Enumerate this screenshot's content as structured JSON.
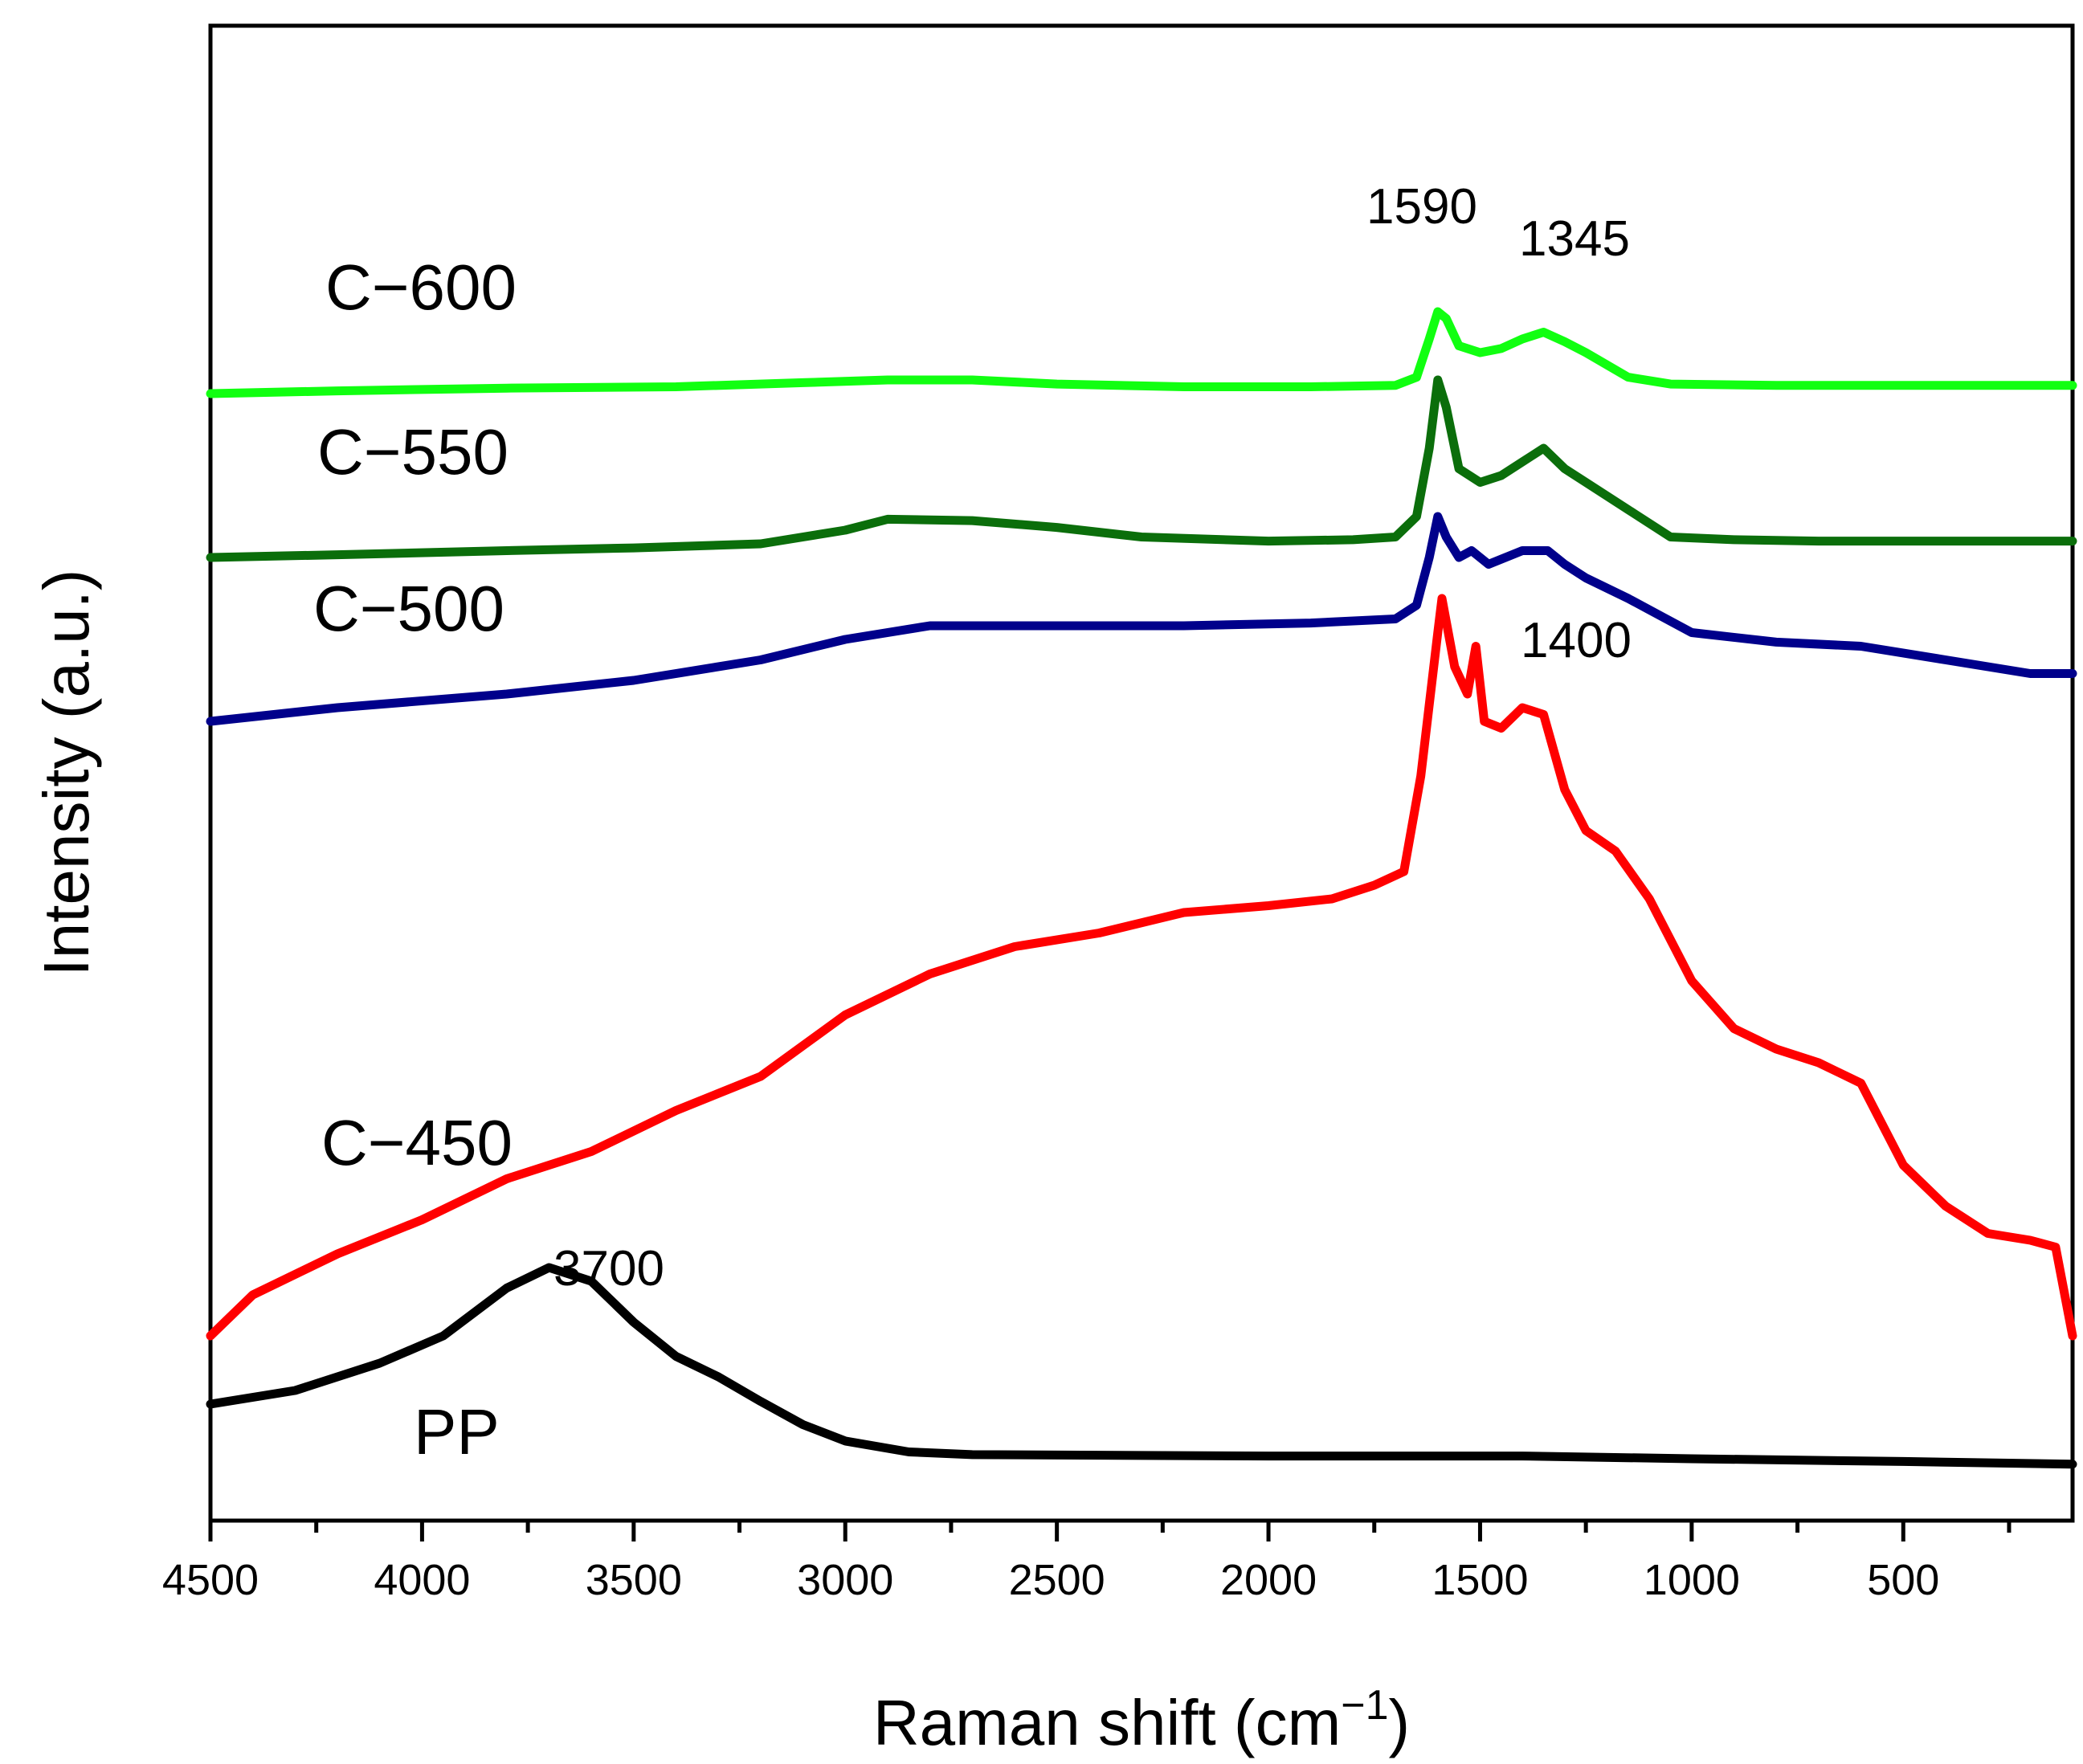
{
  "chart_data": {
    "type": "line",
    "title": "",
    "xlabel": "Raman shift (cm",
    "xlabel_sup": "−1",
    "xlabel_close": ")",
    "ylabel": "Intensity (a.u.)",
    "xlim": [
      4500,
      100
    ],
    "ylim": [
      0,
      10
    ],
    "x_ticks": [
      4500,
      4000,
      3500,
      3000,
      2500,
      2000,
      1500,
      1000,
      500
    ],
    "grid": false,
    "series": [
      {
        "name": "PP",
        "color": "#000000",
        "points": [
          [
            4500,
            0.6
          ],
          [
            4300,
            0.7
          ],
          [
            4100,
            0.9
          ],
          [
            3950,
            1.1
          ],
          [
            3800,
            1.45
          ],
          [
            3700,
            1.6
          ],
          [
            3600,
            1.5
          ],
          [
            3500,
            1.2
          ],
          [
            3400,
            0.95
          ],
          [
            3300,
            0.8
          ],
          [
            3200,
            0.62
          ],
          [
            3100,
            0.45
          ],
          [
            3000,
            0.33
          ],
          [
            2850,
            0.25
          ],
          [
            2700,
            0.23
          ],
          [
            2000,
            0.22
          ],
          [
            1400,
            0.22
          ],
          [
            1000,
            0.2
          ],
          [
            500,
            0.18
          ],
          [
            100,
            0.16
          ]
        ]
      },
      {
        "name": "C−450",
        "color": "#ff0000",
        "points": [
          [
            4500,
            1.1
          ],
          [
            4400,
            1.4
          ],
          [
            4200,
            1.7
          ],
          [
            4000,
            1.95
          ],
          [
            3800,
            2.25
          ],
          [
            3600,
            2.45
          ],
          [
            3400,
            2.75
          ],
          [
            3200,
            3.0
          ],
          [
            3000,
            3.45
          ],
          [
            2800,
            3.75
          ],
          [
            2600,
            3.95
          ],
          [
            2400,
            4.05
          ],
          [
            2200,
            4.2
          ],
          [
            2000,
            4.25
          ],
          [
            1850,
            4.3
          ],
          [
            1750,
            4.4
          ],
          [
            1680,
            4.5
          ],
          [
            1640,
            5.2
          ],
          [
            1600,
            6.25
          ],
          [
            1590,
            6.5
          ],
          [
            1560,
            6.0
          ],
          [
            1530,
            5.8
          ],
          [
            1510,
            6.15
          ],
          [
            1490,
            5.6
          ],
          [
            1450,
            5.55
          ],
          [
            1400,
            5.7
          ],
          [
            1350,
            5.65
          ],
          [
            1300,
            5.1
          ],
          [
            1250,
            4.8
          ],
          [
            1180,
            4.65
          ],
          [
            1100,
            4.3
          ],
          [
            1000,
            3.7
          ],
          [
            900,
            3.35
          ],
          [
            800,
            3.2
          ],
          [
            700,
            3.1
          ],
          [
            600,
            2.95
          ],
          [
            500,
            2.35
          ],
          [
            400,
            2.05
          ],
          [
            300,
            1.85
          ],
          [
            200,
            1.8
          ],
          [
            140,
            1.75
          ],
          [
            100,
            1.1
          ]
        ]
      },
      {
        "name": "C−500",
        "color": "#00008b",
        "points": [
          [
            4500,
            5.6
          ],
          [
            4200,
            5.7
          ],
          [
            3800,
            5.8
          ],
          [
            3500,
            5.9
          ],
          [
            3200,
            6.05
          ],
          [
            3000,
            6.2
          ],
          [
            2800,
            6.3
          ],
          [
            2500,
            6.3
          ],
          [
            2200,
            6.3
          ],
          [
            1900,
            6.32
          ],
          [
            1700,
            6.35
          ],
          [
            1650,
            6.45
          ],
          [
            1620,
            6.8
          ],
          [
            1600,
            7.1
          ],
          [
            1580,
            6.95
          ],
          [
            1550,
            6.8
          ],
          [
            1520,
            6.85
          ],
          [
            1480,
            6.75
          ],
          [
            1400,
            6.85
          ],
          [
            1340,
            6.85
          ],
          [
            1300,
            6.75
          ],
          [
            1250,
            6.65
          ],
          [
            1150,
            6.5
          ],
          [
            1000,
            6.25
          ],
          [
            800,
            6.18
          ],
          [
            600,
            6.15
          ],
          [
            400,
            6.05
          ],
          [
            200,
            5.95
          ],
          [
            100,
            5.95
          ]
        ]
      },
      {
        "name": "C−550",
        "color": "#0b6e0b",
        "points": [
          [
            4500,
            6.8
          ],
          [
            4200,
            6.82
          ],
          [
            3800,
            6.85
          ],
          [
            3500,
            6.87
          ],
          [
            3200,
            6.9
          ],
          [
            3000,
            7.0
          ],
          [
            2900,
            7.08
          ],
          [
            2700,
            7.07
          ],
          [
            2500,
            7.02
          ],
          [
            2300,
            6.95
          ],
          [
            2000,
            6.92
          ],
          [
            1800,
            6.93
          ],
          [
            1700,
            6.95
          ],
          [
            1650,
            7.1
          ],
          [
            1620,
            7.6
          ],
          [
            1600,
            8.1
          ],
          [
            1580,
            7.9
          ],
          [
            1550,
            7.45
          ],
          [
            1500,
            7.35
          ],
          [
            1450,
            7.4
          ],
          [
            1400,
            7.5
          ],
          [
            1350,
            7.6
          ],
          [
            1300,
            7.45
          ],
          [
            1250,
            7.35
          ],
          [
            1150,
            7.15
          ],
          [
            1050,
            6.95
          ],
          [
            900,
            6.93
          ],
          [
            700,
            6.92
          ],
          [
            400,
            6.92
          ],
          [
            100,
            6.92
          ]
        ]
      },
      {
        "name": "C−600",
        "color": "#11ff11",
        "points": [
          [
            4500,
            8.0
          ],
          [
            4200,
            8.02
          ],
          [
            3800,
            8.04
          ],
          [
            3400,
            8.05
          ],
          [
            3100,
            8.08
          ],
          [
            2900,
            8.1
          ],
          [
            2700,
            8.1
          ],
          [
            2500,
            8.07
          ],
          [
            2200,
            8.05
          ],
          [
            1900,
            8.05
          ],
          [
            1700,
            8.06
          ],
          [
            1650,
            8.12
          ],
          [
            1620,
            8.4
          ],
          [
            1600,
            8.6
          ],
          [
            1580,
            8.55
          ],
          [
            1550,
            8.35
          ],
          [
            1500,
            8.3
          ],
          [
            1450,
            8.33
          ],
          [
            1400,
            8.4
          ],
          [
            1350,
            8.45
          ],
          [
            1300,
            8.38
          ],
          [
            1250,
            8.3
          ],
          [
            1150,
            8.12
          ],
          [
            1050,
            8.07
          ],
          [
            800,
            8.06
          ],
          [
            500,
            8.06
          ],
          [
            100,
            8.06
          ]
        ]
      }
    ],
    "labels": [
      {
        "text": "C−600",
        "series": "C−600"
      },
      {
        "text": "C−550",
        "series": "C−550"
      },
      {
        "text": "C−500",
        "series": "C−500"
      },
      {
        "text": "C−450",
        "series": "C−450"
      },
      {
        "text": "PP",
        "series": "PP"
      }
    ],
    "annotations": [
      {
        "text": "1590",
        "x": 1590,
        "y": 8.8
      },
      {
        "text": "1345",
        "x": 1345,
        "y": 8.6
      },
      {
        "text": "1400",
        "x": 1400,
        "y": 5.95
      },
      {
        "text": "3700",
        "x": 3700,
        "y": 1.8
      }
    ]
  }
}
